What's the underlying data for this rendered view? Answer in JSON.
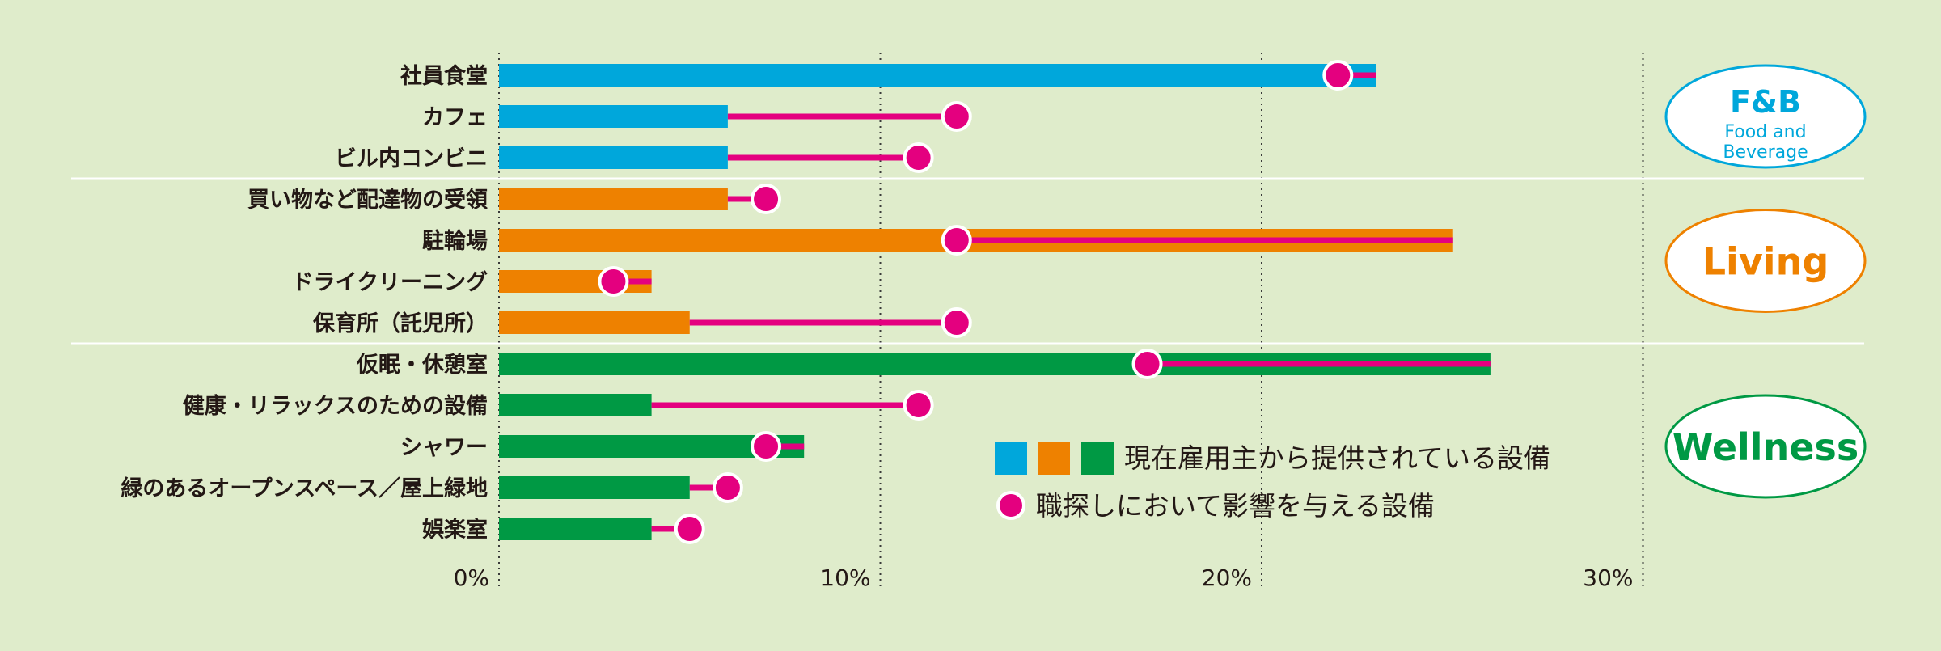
{
  "chart_data": {
    "type": "bar",
    "categories": [
      "社員食堂",
      "カフェ",
      "ビル内コンビニ",
      "買い物など配達物の受領",
      "駐輪場",
      "ドライクリーニング",
      "保育所（託児所）",
      "仮眠・休憩室",
      "健康・リラックスのための設備",
      "シャワー",
      "緑のあるオープンスペース／屋上緑地",
      "娯楽室"
    ],
    "groups": [
      {
        "name": "F&B",
        "subtitle": "Food and Beverage",
        "color": "#00a7db",
        "start": 0,
        "end": 2
      },
      {
        "name": "Living",
        "subtitle": "",
        "color": "#ee8100",
        "start": 3,
        "end": 6
      },
      {
        "name": "Wellness",
        "subtitle": "",
        "color": "#009944",
        "start": 7,
        "end": 11
      }
    ],
    "series": [
      {
        "name": "現在雇用主から提供されている設備",
        "kind": "bar",
        "values": [
          23.0,
          6.0,
          6.0,
          6.0,
          25.0,
          4.0,
          5.0,
          26.0,
          4.0,
          8.0,
          5.0,
          4.0
        ]
      },
      {
        "name": "職探しにおいて影響を与える設備",
        "kind": "dot",
        "color": "#e4007f",
        "values": [
          22.0,
          12.0,
          11.0,
          7.0,
          12.0,
          3.0,
          12.0,
          17.0,
          11.0,
          7.0,
          6.0,
          5.0
        ]
      }
    ],
    "xticks": [
      0,
      10,
      20,
      30
    ],
    "xtick_labels": [
      "0%",
      "10%",
      "20%",
      "30%"
    ],
    "xlim": [
      0,
      30
    ],
    "grid": "dotted-vertical",
    "legend_position": "bottom-right",
    "title": "",
    "xlabel": "",
    "ylabel": ""
  }
}
